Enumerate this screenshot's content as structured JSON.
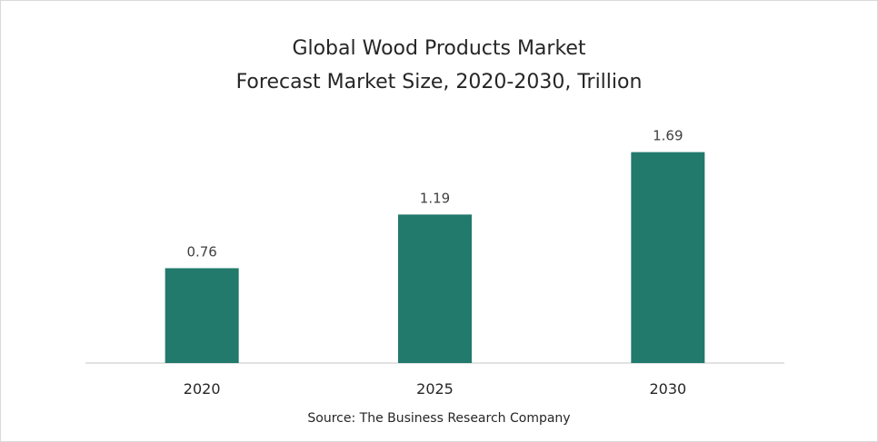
{
  "chart_data": {
    "type": "bar",
    "title": "Global Wood Products Market",
    "subtitle": "Forecast Market Size, 2020-2030, Trillion",
    "categories": [
      "2020",
      "2025",
      "2030"
    ],
    "values": [
      0.76,
      1.19,
      1.69
    ],
    "value_labels": [
      "0.76",
      "1.19",
      "1.69"
    ],
    "xlabel": "",
    "ylabel": "",
    "ylim": [
      0,
      1.8
    ],
    "grid": false,
    "legend": "none",
    "bar_color": "#217A6B",
    "source": "Source: The Business Research Company"
  }
}
